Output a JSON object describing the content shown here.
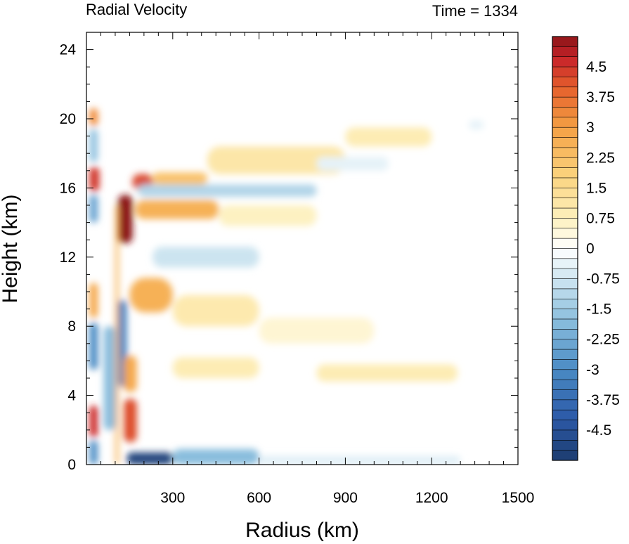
{
  "chart_data": {
    "type": "heatmap",
    "title": "Radial Velocity",
    "subtitle": "Time = 1334",
    "xlabel": "Radius (km)",
    "ylabel": "Height (km)",
    "xlim": [
      0,
      1500
    ],
    "ylim": [
      0,
      25
    ],
    "x_ticks": [
      300,
      600,
      900,
      1200,
      1500
    ],
    "x_tick_labels": [
      "300",
      "600",
      "900",
      "1200",
      "1500"
    ],
    "y_ticks": [
      0,
      4,
      8,
      12,
      16,
      20,
      24
    ],
    "y_tick_labels": [
      "0",
      "4",
      "8",
      "12",
      "16",
      "20",
      "24"
    ],
    "colorbar": {
      "min": -5.25,
      "max": 5.25,
      "step": 0.25,
      "tick_values": [
        4.5,
        3.75,
        3,
        2.25,
        1.5,
        0.75,
        0,
        -0.75,
        -1.5,
        -2.25,
        -3,
        -3.75,
        -4.5
      ],
      "tick_labels": [
        "4.5",
        "3.75",
        "3",
        "2.25",
        "1.5",
        "0.75",
        "0",
        "-0.75",
        "-1.5",
        "-2.25",
        "-3",
        "-3.75",
        "-4.5"
      ],
      "colors": [
        "#1d3d6f",
        "#2c5aa8",
        "#4a8bc4",
        "#89bddd",
        "#cfe6f1",
        "#ffffff",
        "#fdf0bd",
        "#fbd37e",
        "#f4a044",
        "#e55f2c",
        "#c8242a",
        "#8b1418"
      ],
      "color_stops": [
        -5.25,
        -4.2,
        -3.0,
        -1.8,
        -0.75,
        0,
        0.75,
        1.8,
        3.0,
        4.0,
        4.7,
        5.25
      ]
    },
    "features": [
      {
        "x0": 110,
        "x1": 160,
        "y0": 12.8,
        "y1": 15.6,
        "value": 5.3
      },
      {
        "x0": 10,
        "x1": 45,
        "y0": 15.8,
        "y1": 17.2,
        "value": 4.5
      },
      {
        "x0": 160,
        "x1": 230,
        "y0": 15.9,
        "y1": 16.8,
        "value": 4.3
      },
      {
        "x0": 230,
        "x1": 420,
        "y0": 16.2,
        "y1": 16.9,
        "value": 2.2
      },
      {
        "x0": 420,
        "x1": 900,
        "y0": 16.8,
        "y1": 18.4,
        "value": 1.1
      },
      {
        "x0": 900,
        "x1": 1200,
        "y0": 18.4,
        "y1": 19.5,
        "value": 0.9
      },
      {
        "x0": 170,
        "x1": 460,
        "y0": 14.2,
        "y1": 15.3,
        "value": 2.6
      },
      {
        "x0": 460,
        "x1": 800,
        "y0": 13.8,
        "y1": 15.0,
        "value": 0.7
      },
      {
        "x0": 180,
        "x1": 800,
        "y0": 15.5,
        "y1": 16.2,
        "value": -1.2
      },
      {
        "x0": 10,
        "x1": 40,
        "y0": 19.6,
        "y1": 20.6,
        "value": 3.3
      },
      {
        "x0": 10,
        "x1": 40,
        "y0": 17.5,
        "y1": 19.4,
        "value": -1.6
      },
      {
        "x0": 10,
        "x1": 40,
        "y0": 14.0,
        "y1": 15.6,
        "value": -2.4
      },
      {
        "x0": 10,
        "x1": 40,
        "y0": 8.5,
        "y1": 10.5,
        "value": 2.8
      },
      {
        "x0": 10,
        "x1": 40,
        "y0": 5.5,
        "y1": 8.2,
        "value": -3.0
      },
      {
        "x0": 10,
        "x1": 40,
        "y0": 1.6,
        "y1": 3.4,
        "value": 4.6
      },
      {
        "x0": 10,
        "x1": 40,
        "y0": 0.0,
        "y1": 1.4,
        "value": -2.8
      },
      {
        "x0": 60,
        "x1": 100,
        "y0": 2.0,
        "y1": 8.0,
        "value": -1.8
      },
      {
        "x0": 100,
        "x1": 112,
        "y0": 0.0,
        "y1": 15.0,
        "value": 2.5
      },
      {
        "x0": 112,
        "x1": 140,
        "y0": 4.5,
        "y1": 9.5,
        "value": -3.2
      },
      {
        "x0": 130,
        "x1": 175,
        "y0": 1.3,
        "y1": 3.8,
        "value": 4.2
      },
      {
        "x0": 130,
        "x1": 175,
        "y0": 4.2,
        "y1": 6.3,
        "value": 2.8
      },
      {
        "x0": 150,
        "x1": 300,
        "y0": 8.8,
        "y1": 10.8,
        "value": 2.6
      },
      {
        "x0": 300,
        "x1": 600,
        "y0": 8.0,
        "y1": 9.8,
        "value": 1.0
      },
      {
        "x0": 600,
        "x1": 1000,
        "y0": 7.0,
        "y1": 8.5,
        "value": 0.5
      },
      {
        "x0": 300,
        "x1": 600,
        "y0": 5.0,
        "y1": 6.2,
        "value": 0.9
      },
      {
        "x0": 800,
        "x1": 1290,
        "y0": 4.8,
        "y1": 5.8,
        "value": 0.9
      },
      {
        "x0": 140,
        "x1": 300,
        "y0": 0.0,
        "y1": 0.7,
        "value": -5.0
      },
      {
        "x0": 300,
        "x1": 600,
        "y0": 0.0,
        "y1": 0.9,
        "value": -1.8
      },
      {
        "x0": 600,
        "x1": 1300,
        "y0": 0.0,
        "y1": 0.5,
        "value": -0.5
      },
      {
        "x0": 230,
        "x1": 600,
        "y0": 11.4,
        "y1": 12.6,
        "value": -0.8
      },
      {
        "x0": 800,
        "x1": 1050,
        "y0": 17.0,
        "y1": 17.8,
        "value": -0.4
      },
      {
        "x0": 1330,
        "x1": 1380,
        "y0": 19.4,
        "y1": 19.9,
        "value": -0.4
      }
    ]
  }
}
